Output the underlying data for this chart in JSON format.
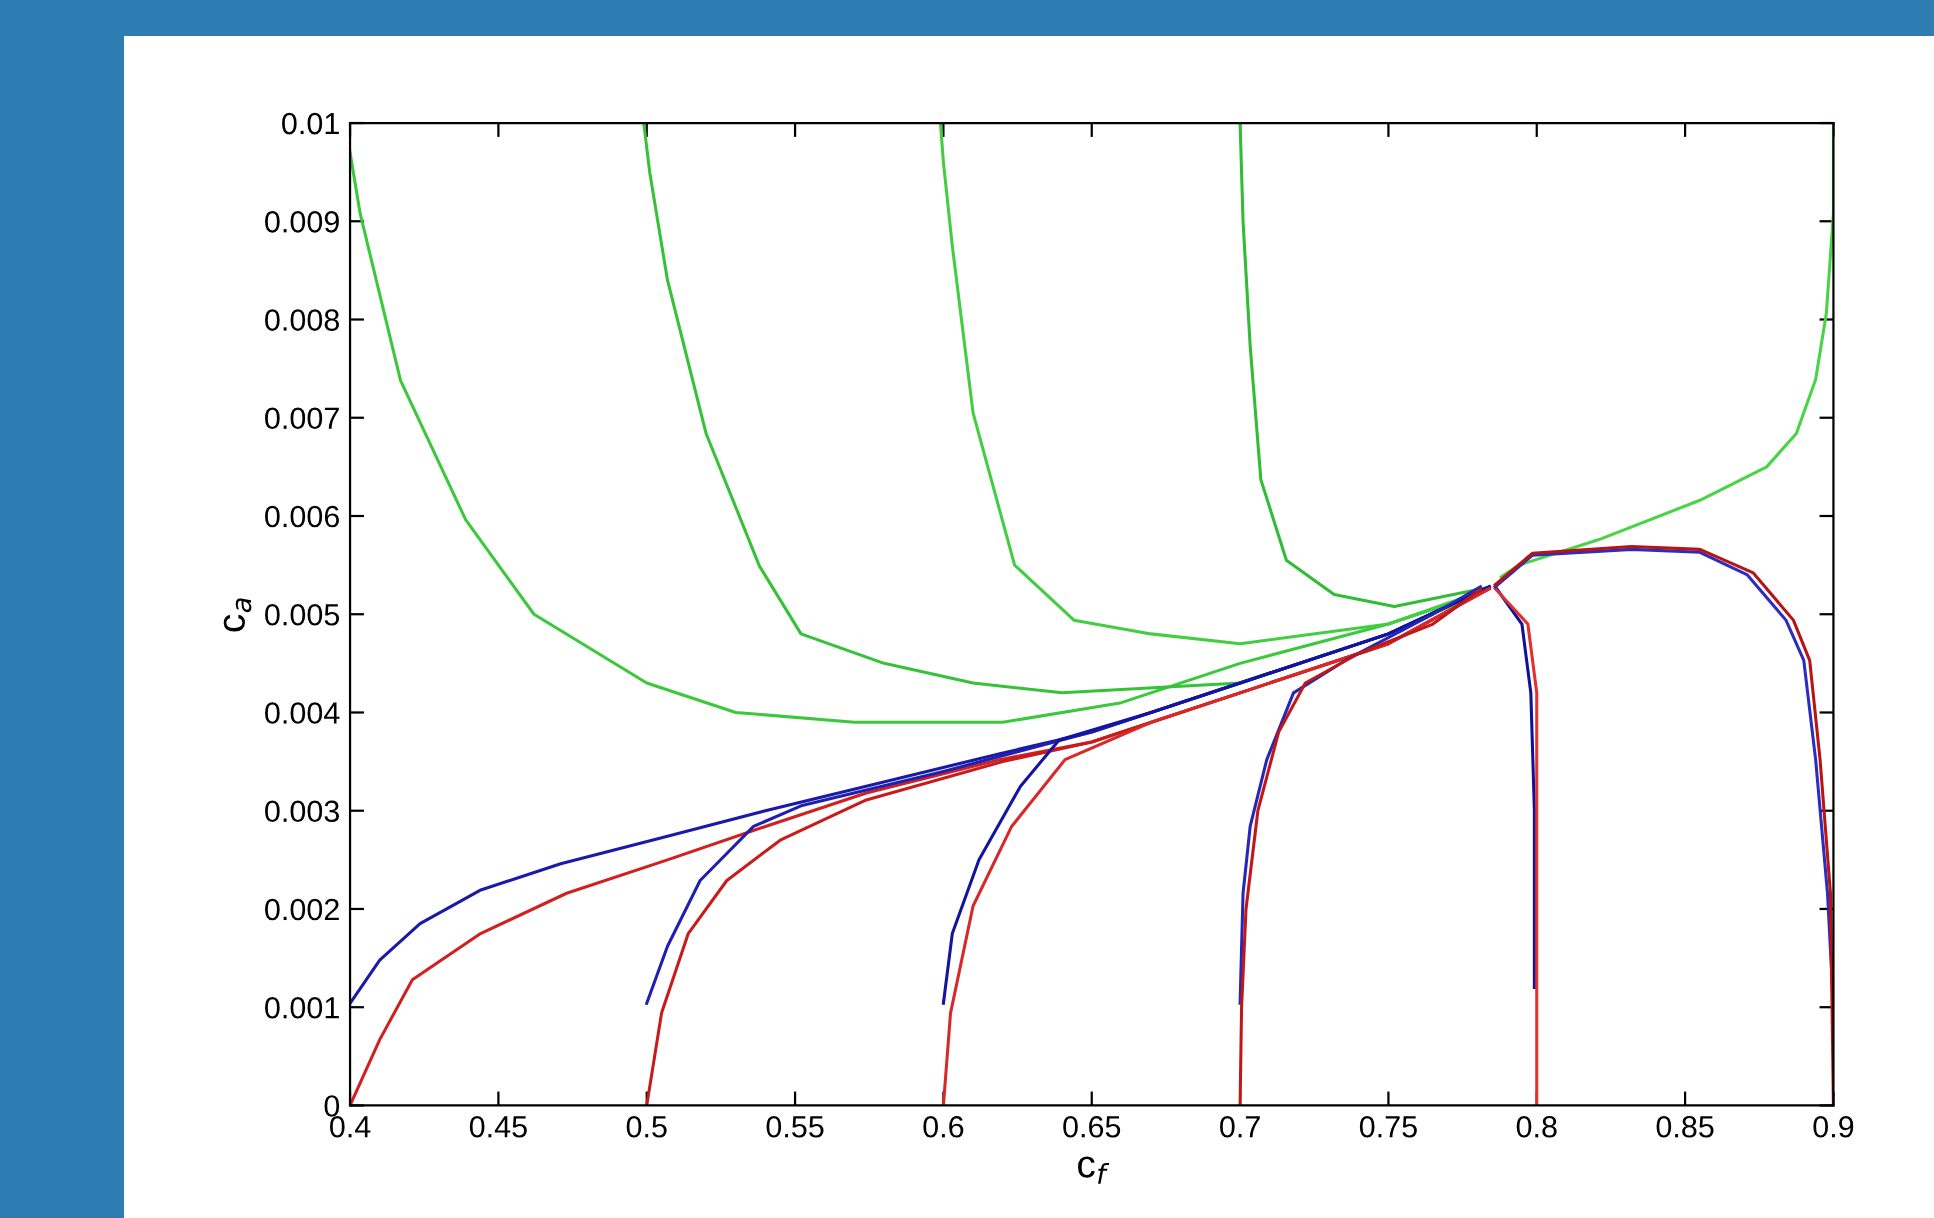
{
  "chart_data": {
    "type": "line",
    "xlabel": "c$_{f}$",
    "ylabel": "c$_{a}$",
    "xlim": [
      0.4,
      0.9
    ],
    "ylim": [
      0,
      0.01
    ],
    "xticks": [
      0.4,
      0.45,
      0.5,
      0.55,
      0.6,
      0.65,
      0.7,
      0.75,
      0.8,
      0.85,
      0.9
    ],
    "yticks": [
      0,
      0.001,
      0.002,
      0.003,
      0.004,
      0.005,
      0.006,
      0.007,
      0.008,
      0.009,
      0.01
    ],
    "grid": false,
    "marker": "none",
    "line_style": "solid",
    "series": [
      {
        "color": "#3cc83c",
        "x": [
          0.4,
          0.4034,
          0.417,
          0.439,
          0.462,
          0.5,
          0.53,
          0.57,
          0.62,
          0.66,
          0.7,
          0.75,
          0.78
        ],
        "values": [
          0.0097,
          0.00908,
          0.00738,
          0.00596,
          0.005,
          0.0043,
          0.004,
          0.0039,
          0.0039,
          0.0041,
          0.0045,
          0.0049,
          0.0052
        ]
      },
      {
        "color": "#36c238",
        "x": [
          0.499,
          0.501,
          0.507,
          0.52,
          0.538,
          0.552,
          0.58,
          0.61,
          0.64,
          0.7,
          0.75,
          0.781
        ],
        "values": [
          0.01,
          0.0095,
          0.0084,
          0.00684,
          0.00549,
          0.0048,
          0.0045,
          0.0043,
          0.0042,
          0.0043,
          0.0048,
          0.00522
        ]
      },
      {
        "color": "#42ce40",
        "x": [
          0.599,
          0.6,
          0.603,
          0.61,
          0.624,
          0.644,
          0.67,
          0.7,
          0.75,
          0.782
        ],
        "values": [
          0.01,
          0.0096,
          0.00875,
          0.00705,
          0.0055,
          0.00494,
          0.0048,
          0.0047,
          0.0049,
          0.00524
        ]
      },
      {
        "color": "#30bc34",
        "x": [
          0.7,
          0.701,
          0.7034,
          0.707,
          0.7156,
          0.7317,
          0.752,
          0.783
        ],
        "values": [
          0.01,
          0.009,
          0.00773,
          0.00637,
          0.00555,
          0.0052,
          0.00508,
          0.00527
        ]
      },
      {
        "color": "#48d446",
        "x": [
          0.9,
          0.9,
          0.8976,
          0.894,
          0.8875,
          0.8775,
          0.855,
          0.821,
          0.794,
          0.788
        ],
        "values": [
          0.01,
          0.00908,
          0.00806,
          0.00739,
          0.00684,
          0.0065,
          0.00616,
          0.00576,
          0.0055,
          0.00538
        ]
      },
      {
        "color": "#1a1aa8",
        "x": [
          0.4,
          0.41,
          0.4236,
          0.4438,
          0.471,
          0.507,
          0.54,
          0.574,
          0.619,
          0.65,
          0.7,
          0.75,
          0.784
        ],
        "values": [
          0.00104,
          0.00148,
          0.00185,
          0.00219,
          0.00246,
          0.00274,
          0.003,
          0.00325,
          0.00358,
          0.0038,
          0.0043,
          0.0048,
          0.00528
        ]
      },
      {
        "color": "#d02020",
        "x": [
          0.4,
          0.41,
          0.421,
          0.444,
          0.473,
          0.507,
          0.54,
          0.574,
          0.619,
          0.65,
          0.7,
          0.75,
          0.784
        ],
        "values": [
          0,
          0.00067,
          0.00128,
          0.00175,
          0.00216,
          0.0025,
          0.00284,
          0.00318,
          0.00352,
          0.0037,
          0.0042,
          0.0047,
          0.00526
        ]
      },
      {
        "color": "#2020b0",
        "x": [
          0.5,
          0.507,
          0.518,
          0.536,
          0.552,
          0.6,
          0.65,
          0.7,
          0.75,
          0.784
        ],
        "values": [
          0.00104,
          0.00162,
          0.00229,
          0.00284,
          0.00305,
          0.0034,
          0.0038,
          0.0043,
          0.0048,
          0.00528
        ]
      },
      {
        "color": "#c81c1c",
        "x": [
          0.5,
          0.505,
          0.514,
          0.527,
          0.545,
          0.574,
          0.62,
          0.65,
          0.7,
          0.75,
          0.784
        ],
        "values": [
          0,
          0.00094,
          0.00175,
          0.00229,
          0.0027,
          0.00311,
          0.0035,
          0.0037,
          0.0042,
          0.0047,
          0.00526
        ]
      },
      {
        "color": "#1414a0",
        "x": [
          0.6,
          0.603,
          0.612,
          0.626,
          0.639,
          0.67,
          0.7,
          0.75,
          0.784
        ],
        "values": [
          0.00104,
          0.00175,
          0.0025,
          0.00325,
          0.00372,
          0.004,
          0.0043,
          0.0048,
          0.00528
        ]
      },
      {
        "color": "#d82828",
        "x": [
          0.6,
          0.6024,
          0.61,
          0.623,
          0.641,
          0.67,
          0.7,
          0.75,
          0.784
        ],
        "values": [
          0,
          0.00094,
          0.00203,
          0.00284,
          0.00352,
          0.0039,
          0.0042,
          0.0047,
          0.00526
        ]
      },
      {
        "color": "#2626b8",
        "x": [
          0.7,
          0.701,
          0.7034,
          0.709,
          0.718,
          0.736,
          0.765,
          0.781
        ],
        "values": [
          0.00104,
          0.00216,
          0.00284,
          0.00352,
          0.0042,
          0.00454,
          0.005,
          0.00528
        ]
      },
      {
        "color": "#c01818",
        "x": [
          0.7,
          0.7005,
          0.702,
          0.706,
          0.713,
          0.722,
          0.74,
          0.765,
          0.781
        ],
        "values": [
          0,
          0.001,
          0.002,
          0.003,
          0.0038,
          0.0043,
          0.0046,
          0.0049,
          0.00525
        ]
      },
      {
        "color": "#10109a",
        "x": [
          0.786,
          0.795,
          0.798,
          0.7992,
          0.7992
        ],
        "values": [
          0.00528,
          0.0049,
          0.0042,
          0.003,
          0.0012
        ]
      },
      {
        "color": "#e03030",
        "x": [
          0.786,
          0.797,
          0.8,
          0.8,
          0.8
        ],
        "values": [
          0.00526,
          0.0049,
          0.0042,
          0.003,
          0
        ]
      },
      {
        "color": "#2c2cc0",
        "x": [
          0.786,
          0.7985,
          0.832,
          0.855,
          0.871,
          0.884,
          0.89,
          0.894,
          0.898,
          0.9
        ],
        "values": [
          0.00528,
          0.0056,
          0.00566,
          0.00563,
          0.0054,
          0.00494,
          0.00453,
          0.00352,
          0.00216,
          0.001
        ]
      },
      {
        "color": "#b81414",
        "x": [
          0.786,
          0.7985,
          0.832,
          0.855,
          0.873,
          0.8865,
          0.892,
          0.8955,
          0.899,
          0.9
        ],
        "values": [
          0.0053,
          0.00562,
          0.00569,
          0.00566,
          0.00542,
          0.00494,
          0.00453,
          0.00352,
          0.00216,
          0
        ]
      }
    ]
  }
}
